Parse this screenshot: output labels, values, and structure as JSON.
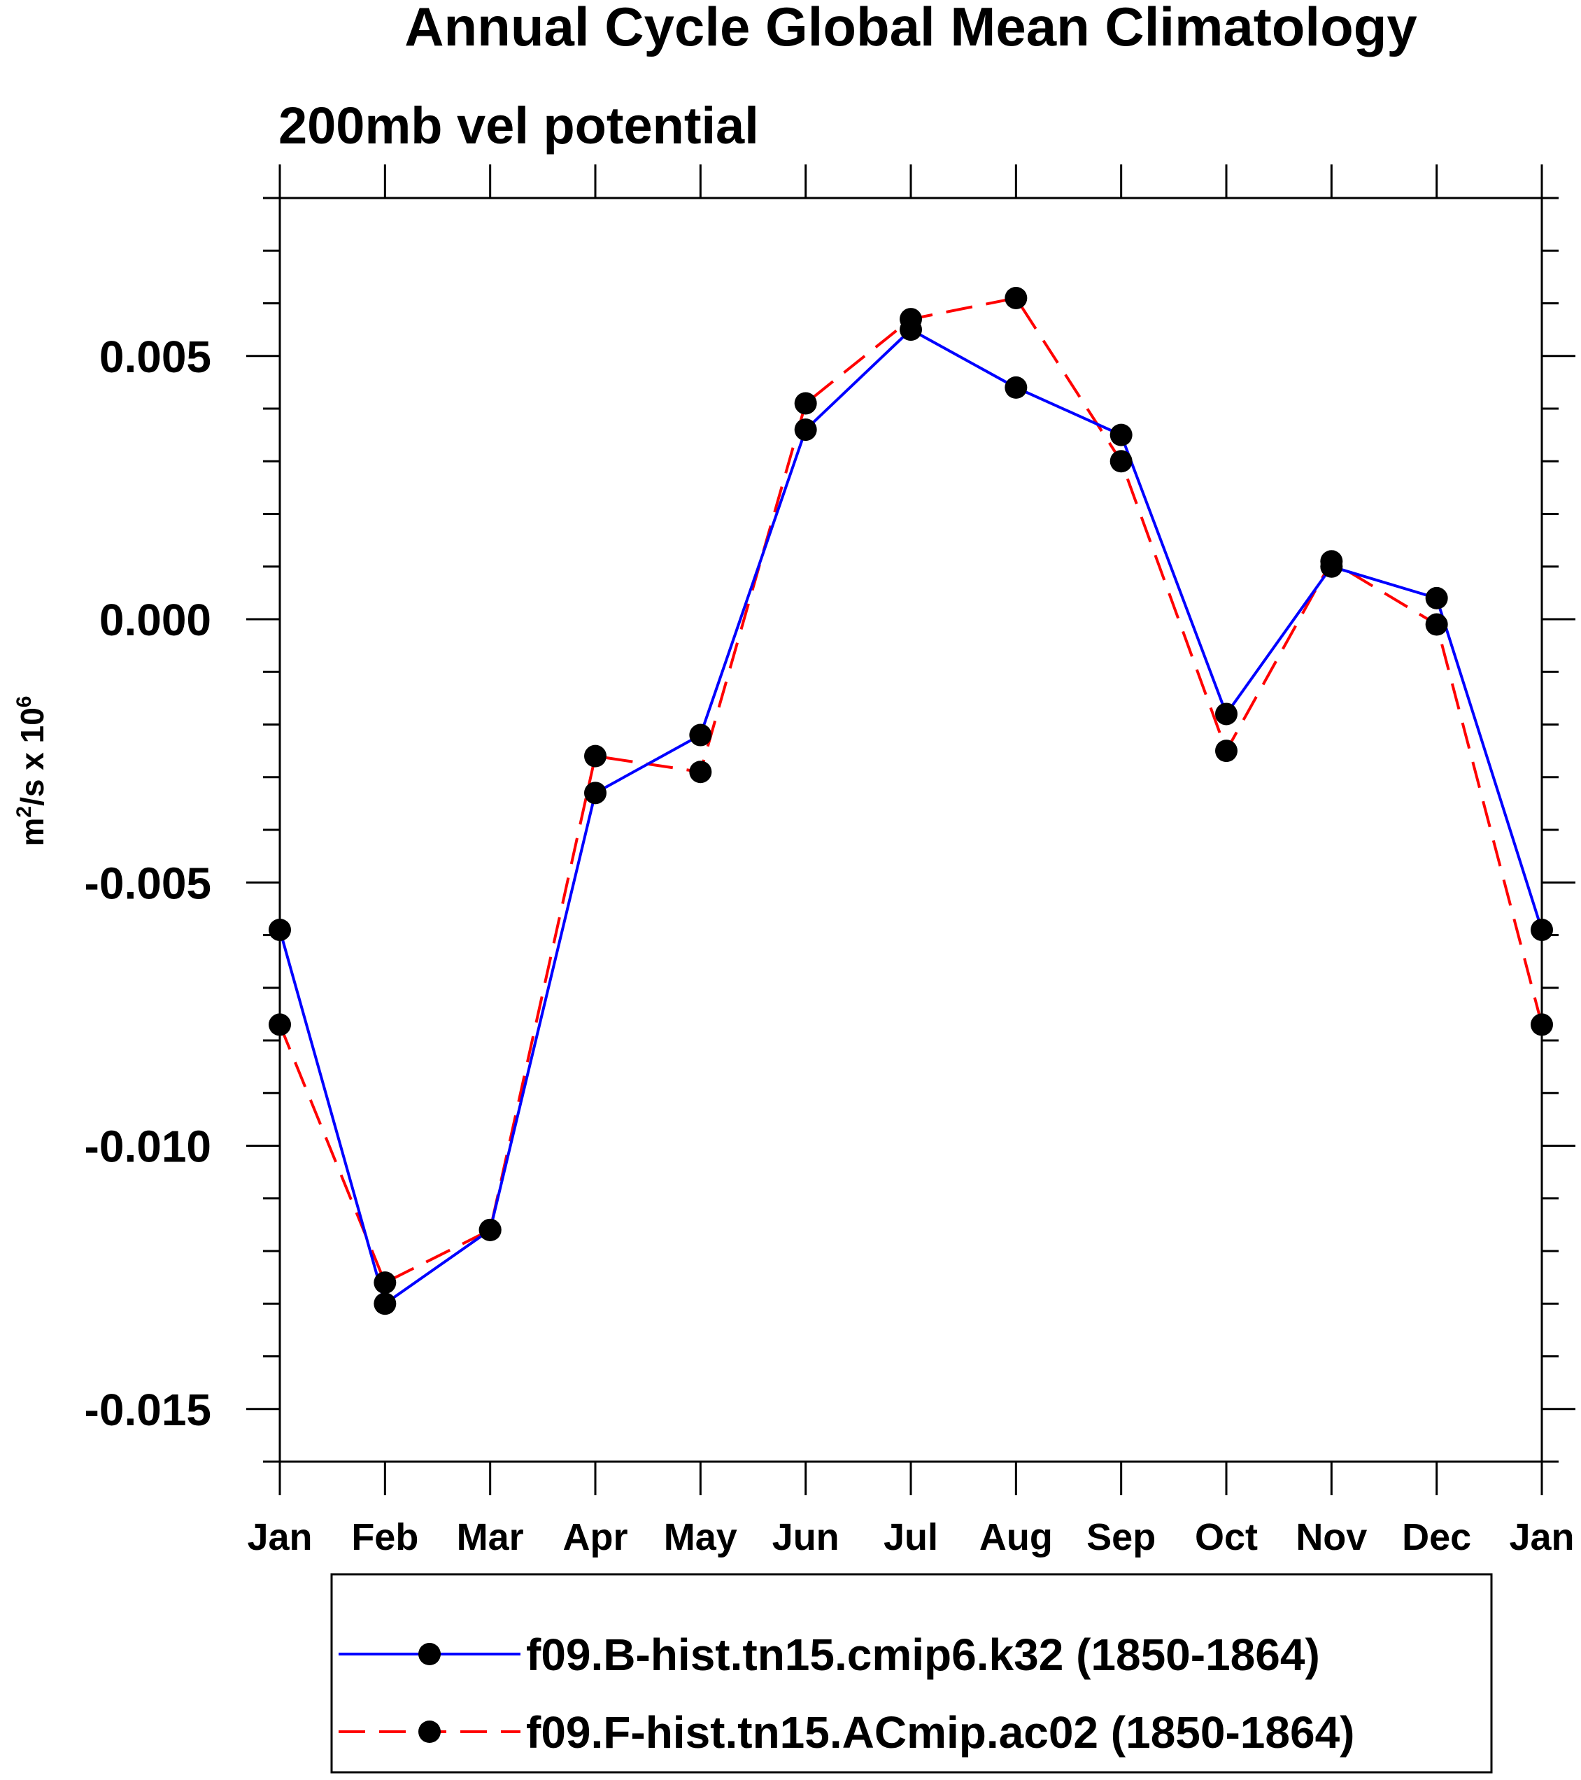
{
  "chart_data": {
    "type": "line",
    "title": "Annual Cycle Global Mean Climatology",
    "subtitle": "200mb vel potential",
    "ylabel": {
      "base": "m",
      "sup1": "2",
      "mid": "/s x 10",
      "sup2": "6"
    },
    "xlabel": "",
    "categories": [
      "Jan",
      "Feb",
      "Mar",
      "Apr",
      "May",
      "Jun",
      "Jul",
      "Aug",
      "Sep",
      "Oct",
      "Nov",
      "Dec",
      "Jan"
    ],
    "yticks": [
      0.005,
      0.0,
      -0.005,
      -0.01,
      -0.015
    ],
    "ytick_labels": [
      "0.005",
      "0.000",
      "-0.005",
      "-0.010",
      "-0.015"
    ],
    "ylim": [
      -0.016,
      0.008
    ],
    "grid": false,
    "legend_position": "bottom",
    "series": [
      {
        "name": "f09.B-hist.tn15.cmip6.k32 (1850-1864)",
        "color": "#0000ff",
        "dash": "solid",
        "values": [
          -0.0059,
          -0.013,
          -0.0116,
          -0.0033,
          -0.0022,
          0.0036,
          0.0055,
          0.0044,
          0.0035,
          -0.0018,
          0.001,
          0.0004,
          -0.0059
        ]
      },
      {
        "name": "f09.F-hist.tn15.ACmip.ac02 (1850-1864)",
        "color": "#ff0000",
        "dash": "dashed",
        "values": [
          -0.0077,
          -0.0126,
          -0.0116,
          -0.0026,
          -0.0029,
          0.0041,
          0.0057,
          0.0061,
          0.003,
          -0.0025,
          0.0011,
          -0.0001,
          -0.0077
        ]
      }
    ]
  }
}
